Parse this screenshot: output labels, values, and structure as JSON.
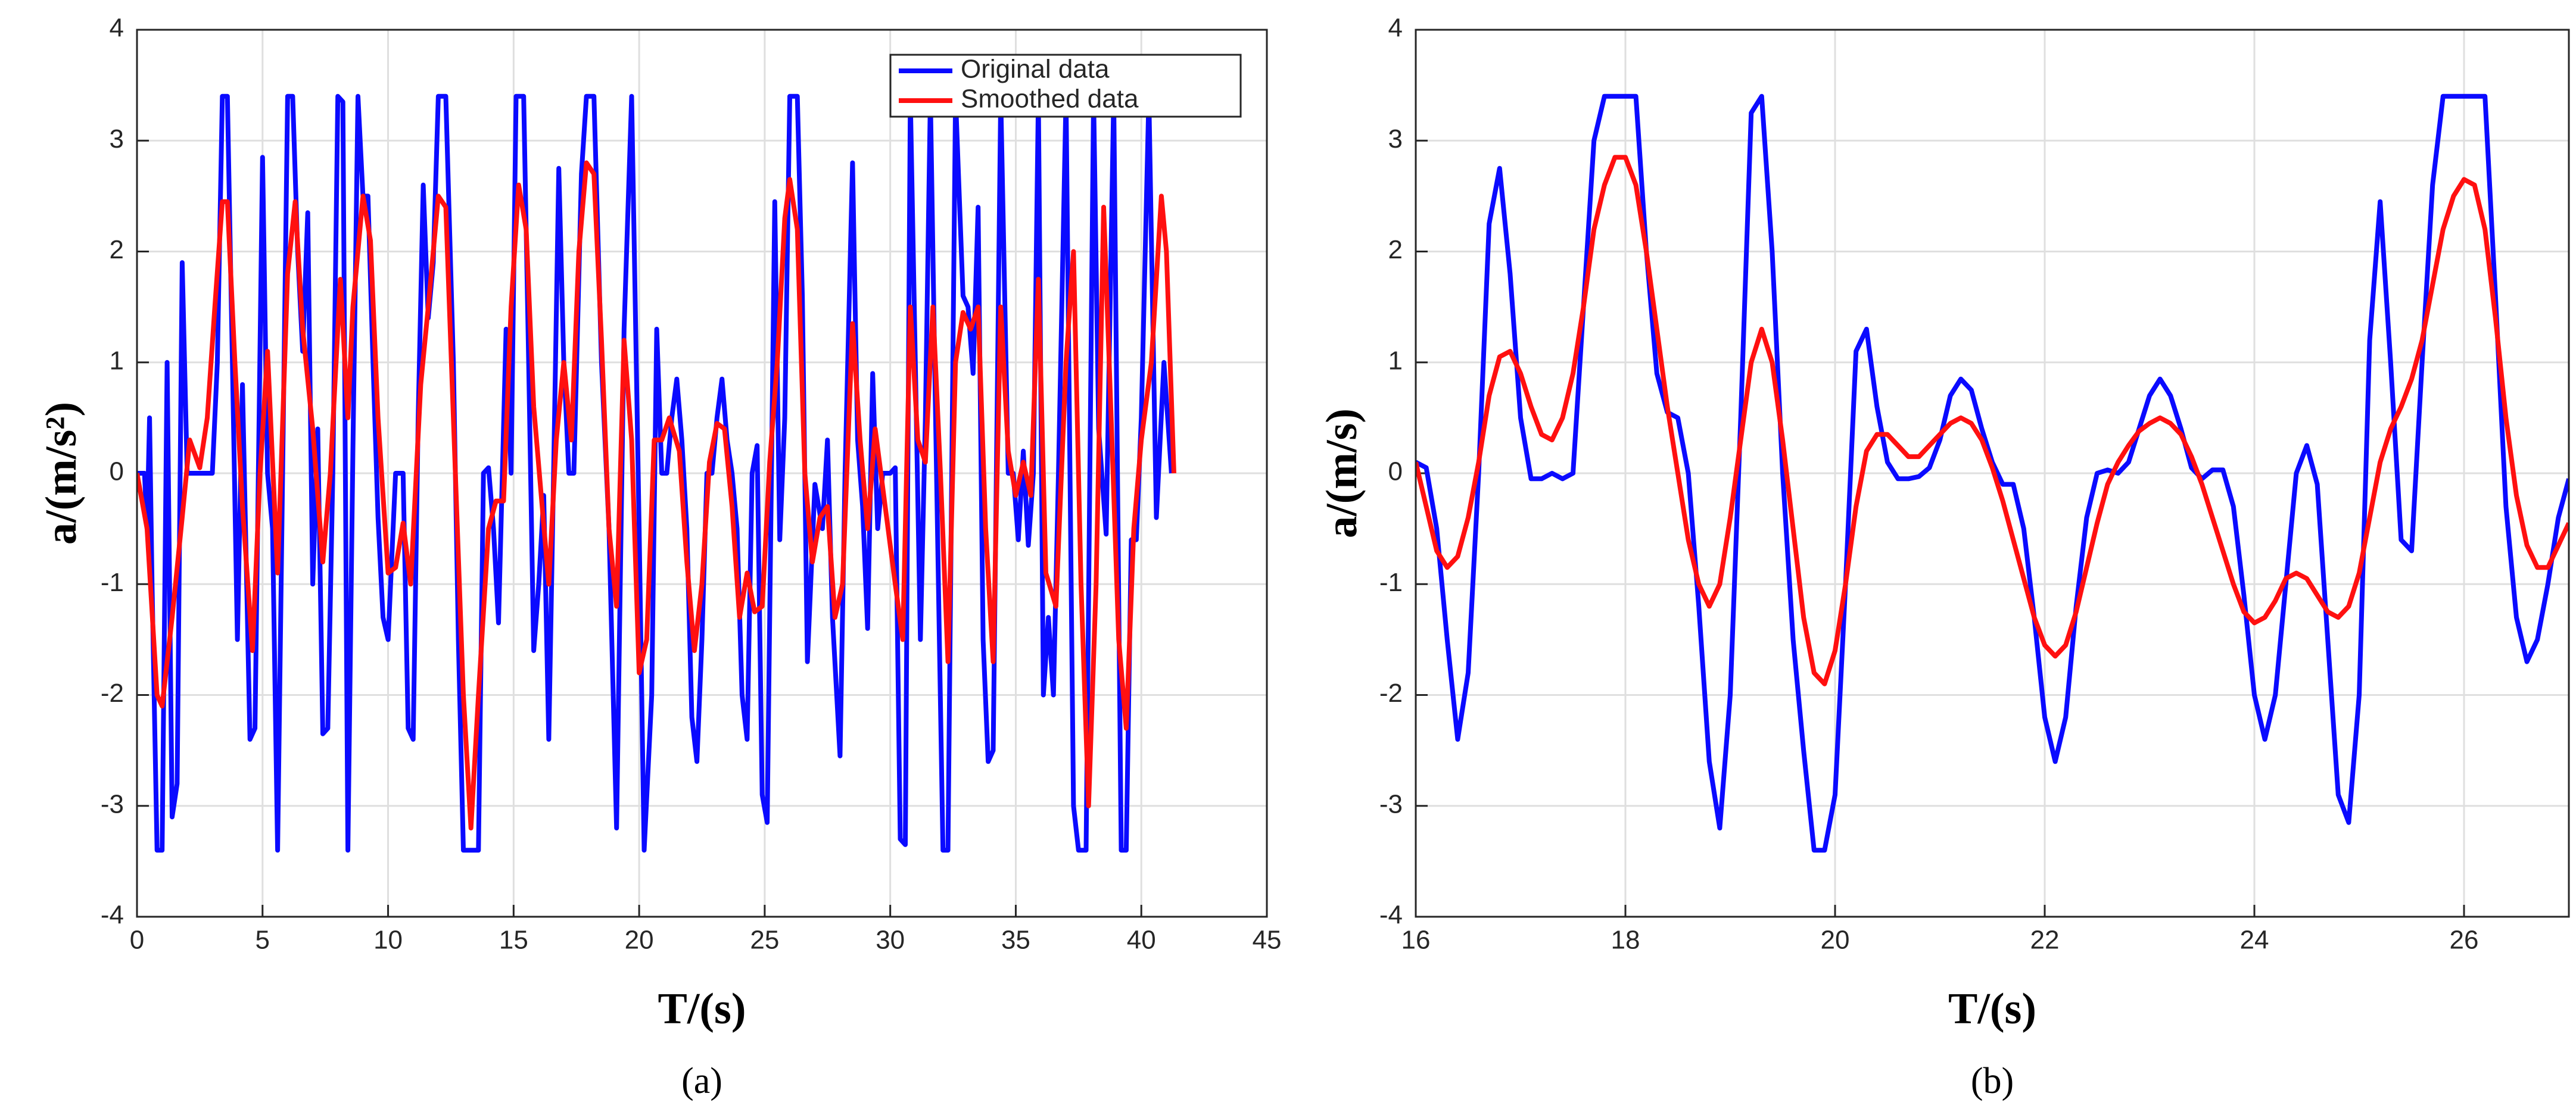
{
  "chart_data": [
    {
      "type": "line",
      "xlabel": "T/(s)",
      "ylabel": "a/(m/s²)",
      "caption": "(a)",
      "xlim": [
        0,
        45
      ],
      "xticks": [
        0,
        5,
        10,
        15,
        20,
        25,
        30,
        35,
        40,
        45
      ],
      "ylim": [
        -4,
        4
      ],
      "yticks": [
        -4,
        -3,
        -2,
        -1,
        0,
        1,
        2,
        3,
        4
      ],
      "grid": true,
      "legend": "upper right",
      "series": [
        {
          "name": "Original data",
          "color": "#0a0aff",
          "x": [
            0,
            0.3,
            0.4,
            0.5,
            0.6,
            0.8,
            1.0,
            1.2,
            1.4,
            1.6,
            1.8,
            2.0,
            2.4,
            2.8,
            3.0,
            3.2,
            3.4,
            3.6,
            3.8,
            4.0,
            4.2,
            4.5,
            4.7,
            5.0,
            5.2,
            5.4,
            5.6,
            5.8,
            6.0,
            6.2,
            6.4,
            6.6,
            6.8,
            7.0,
            7.2,
            7.4,
            7.6,
            7.8,
            8.0,
            8.2,
            8.4,
            8.6,
            8.8,
            9.0,
            9.2,
            9.4,
            9.6,
            9.8,
            10.0,
            10.3,
            10.6,
            10.8,
            11.0,
            11.2,
            11.4,
            11.6,
            11.8,
            12.0,
            12.3,
            12.6,
            12.8,
            13.0,
            13.3,
            13.6,
            13.8,
            14.0,
            14.2,
            14.4,
            14.7,
            14.9,
            15.1,
            15.4,
            15.6,
            15.8,
            16.0,
            16.2,
            16.4,
            16.6,
            16.8,
            17.0,
            17.2,
            17.4,
            17.7,
            17.9,
            18.2,
            18.5,
            18.8,
            19.1,
            19.4,
            19.7,
            20.0,
            20.2,
            20.5,
            20.7,
            20.9,
            21.1,
            21.3,
            21.5,
            21.7,
            21.9,
            22.1,
            22.3,
            22.5,
            22.7,
            22.9,
            23.1,
            23.3,
            23.5,
            23.7,
            23.9,
            24.1,
            24.3,
            24.5,
            24.7,
            24.9,
            25.1,
            25.4,
            25.6,
            25.8,
            26.0,
            26.3,
            26.5,
            26.7,
            27.0,
            27.3,
            27.5,
            27.7,
            28.0,
            28.2,
            28.5,
            28.7,
            28.9,
            29.1,
            29.3,
            29.5,
            29.7,
            30.0,
            30.2,
            30.4,
            30.6,
            30.8,
            31.0,
            31.2,
            31.4,
            31.6,
            31.8,
            32.1,
            32.3,
            32.6,
            32.9,
            33.1,
            33.3,
            33.5,
            33.7,
            33.9,
            34.1,
            34.4,
            34.7,
            34.9,
            35.1,
            35.3,
            35.5,
            35.7,
            35.9,
            36.1,
            36.3,
            36.5,
            36.7,
            37.0,
            37.3,
            37.5,
            37.8,
            38.1,
            38.3,
            38.6,
            38.9,
            39.2,
            39.4,
            39.6,
            39.8,
            40.0,
            40.3,
            40.6,
            40.9,
            41.2
          ],
          "values": [
            0,
            0,
            -0.5,
            0.5,
            -1,
            -3.4,
            -3.4,
            1.0,
            -3.1,
            -2.8,
            1.9,
            0,
            0,
            0,
            0,
            1,
            3.4,
            3.4,
            1,
            -1.5,
            0.8,
            -2.4,
            -2.3,
            2.85,
            0,
            -0.5,
            -3.4,
            0,
            3.4,
            3.4,
            2,
            1.1,
            2.35,
            -1,
            0.4,
            -2.35,
            -2.3,
            0,
            3.4,
            3.35,
            -3.4,
            0.2,
            3.4,
            2.5,
            2.5,
            1.0,
            -0.4,
            -1.3,
            -1.5,
            0,
            0,
            -2.3,
            -2.4,
            0.5,
            2.6,
            1.4,
            1.9,
            3.4,
            3.4,
            1.0,
            -1.5,
            -3.4,
            -3.4,
            -3.4,
            0,
            0.05,
            -0.5,
            -1.35,
            1.3,
            0,
            3.4,
            3.4,
            1.0,
            -1.6,
            -1.0,
            -0.2,
            -2.4,
            0.1,
            2.75,
            1.0,
            0,
            0,
            2.7,
            3.4,
            3.4,
            1,
            -0.5,
            -3.2,
            1.3,
            3.4,
            -0.5,
            -3.4,
            -2.0,
            1.3,
            0,
            0,
            0.5,
            0.85,
            0.3,
            -0.5,
            -2.2,
            -2.6,
            -1.5,
            0,
            0,
            0.5,
            0.85,
            0.3,
            0,
            -0.5,
            -2.0,
            -2.4,
            0,
            0.25,
            -2.9,
            -3.15,
            2.45,
            -0.6,
            0.5,
            3.4,
            3.4,
            1.6,
            -1.7,
            -0.1,
            -0.5,
            0.3,
            -1.3,
            -2.55,
            0,
            2.8,
            0.3,
            -0.3,
            -1.4,
            0.9,
            -0.5,
            0,
            0,
            0.05,
            -3.3,
            -3.35,
            3.4,
            1.0,
            -1.5,
            0.5,
            3.4,
            0.6,
            -3.4,
            -3.4,
            3.4,
            1.6,
            1.5,
            0.9,
            2.4,
            -1.5,
            -2.6,
            -2.5,
            3.4,
            0,
            0,
            -0.6,
            0.2,
            -0.65,
            0,
            3.4,
            -2.0,
            -1.3,
            -2.0,
            0,
            3.4,
            -3.0,
            -3.4,
            -3.4,
            3.4,
            0.4,
            -0.55,
            3.4,
            -3.4,
            -3.4,
            -0.6,
            -0.6,
            0.5,
            3.4,
            -0.4,
            1.0,
            0
          ]
        },
        {
          "name": "Smoothed data",
          "color": "#ff1010",
          "x": [
            0,
            0.4,
            0.8,
            1.0,
            1.4,
            1.8,
            2.1,
            2.5,
            2.8,
            3.1,
            3.4,
            3.6,
            3.9,
            4.2,
            4.6,
            4.9,
            5.2,
            5.6,
            6.0,
            6.3,
            6.6,
            7.0,
            7.4,
            7.7,
            8.1,
            8.4,
            8.6,
            9.0,
            9.3,
            9.6,
            10.0,
            10.3,
            10.6,
            10.9,
            11.3,
            11.6,
            12.0,
            12.3,
            12.6,
            13.0,
            13.3,
            13.6,
            14.0,
            14.3,
            14.6,
            14.9,
            15.2,
            15.5,
            15.8,
            16.1,
            16.4,
            16.7,
            17.0,
            17.3,
            17.6,
            17.9,
            18.2,
            18.5,
            18.8,
            19.1,
            19.4,
            19.7,
            20.0,
            20.3,
            20.6,
            20.9,
            21.2,
            21.6,
            21.9,
            22.2,
            22.5,
            22.8,
            23.1,
            23.4,
            23.7,
            24.0,
            24.3,
            24.6,
            24.9,
            25.2,
            25.5,
            25.8,
            26.0,
            26.3,
            26.6,
            26.9,
            27.2,
            27.5,
            27.8,
            28.1,
            28.5,
            28.8,
            29.1,
            29.4,
            29.8,
            30.2,
            30.5,
            30.8,
            31.1,
            31.4,
            31.7,
            32.0,
            32.3,
            32.6,
            32.9,
            33.2,
            33.5,
            33.8,
            34.1,
            34.4,
            34.7,
            35.0,
            35.3,
            35.6,
            35.9,
            36.2,
            36.6,
            37.0,
            37.3,
            37.6,
            37.9,
            38.2,
            38.5,
            38.8,
            39.1,
            39.4,
            39.7,
            40.0,
            40.4,
            40.8,
            41.0,
            41.3
          ],
          "values": [
            0,
            -0.5,
            -2.0,
            -2.1,
            -1.3,
            -0.4,
            0.3,
            0.05,
            0.5,
            1.5,
            2.45,
            2.45,
            1,
            -0.3,
            -1.6,
            0,
            1.1,
            -0.9,
            1.8,
            2.45,
            1.3,
            0.4,
            -0.8,
            0,
            1.75,
            0.5,
            1.5,
            2.5,
            2.1,
            0.5,
            -0.9,
            -0.85,
            -0.45,
            -1.0,
            0.8,
            1.5,
            2.5,
            2.4,
            0.5,
            -2.0,
            -3.2,
            -2.0,
            -0.5,
            -0.25,
            -0.25,
            1.5,
            2.6,
            2.2,
            0.6,
            -0.2,
            -1.0,
            0.3,
            1.0,
            0.3,
            2.0,
            2.8,
            2.7,
            1.2,
            -0.5,
            -1.2,
            1.2,
            0.3,
            -1.8,
            -1.5,
            0.3,
            0.3,
            0.5,
            0.2,
            -0.8,
            -1.6,
            -1.0,
            0.1,
            0.45,
            0.4,
            -0.3,
            -1.3,
            -0.9,
            -1.25,
            -1.2,
            0.1,
            1.0,
            2.3,
            2.65,
            2.2,
            0,
            -0.8,
            -0.4,
            -0.3,
            -1.3,
            -1.0,
            1.35,
            0.3,
            -0.5,
            0.4,
            -0.3,
            -1.0,
            -1.5,
            1.5,
            0.3,
            0.1,
            1.5,
            0,
            -1.7,
            1.0,
            1.45,
            1.3,
            1.5,
            -0.5,
            -1.7,
            1.5,
            0.2,
            -0.2,
            0.1,
            -0.2,
            1.75,
            -0.9,
            -1.2,
            1.0,
            2.0,
            -1.0,
            -3.0,
            -1.0,
            2.4,
            0.5,
            -1.5,
            -2.3,
            -0.5,
            0.3,
            1.0,
            2.5,
            2.0,
            0
          ]
        }
      ]
    },
    {
      "type": "line",
      "xlabel": "T/(s)",
      "ylabel": "a/(m/s)",
      "caption": "(b)",
      "xlim": [
        16,
        27
      ],
      "xticks": [
        16,
        18,
        20,
        22,
        24,
        26
      ],
      "ylim": [
        -4,
        4
      ],
      "yticks": [
        -4,
        -3,
        -2,
        -1,
        0,
        1,
        2,
        3,
        4
      ],
      "grid": true,
      "x": [
        16,
        16.1,
        16.2,
        16.3,
        16.4,
        16.5,
        16.6,
        16.7,
        16.8,
        16.9,
        17,
        17.1,
        17.2,
        17.3,
        17.4,
        17.5,
        17.6,
        17.7,
        17.8,
        17.9,
        18,
        18.1,
        18.2,
        18.3,
        18.4,
        18.5,
        18.6,
        18.7,
        18.8,
        18.9,
        19,
        19.1,
        19.2,
        19.3,
        19.4,
        19.5,
        19.6,
        19.7,
        19.8,
        19.9,
        20,
        20.1,
        20.2,
        20.3,
        20.4,
        20.5,
        20.6,
        20.7,
        20.8,
        20.9,
        21,
        21.1,
        21.2,
        21.3,
        21.4,
        21.5,
        21.6,
        21.7,
        21.8,
        21.9,
        22,
        22.1,
        22.2,
        22.3,
        22.4,
        22.5,
        22.6,
        22.7,
        22.8,
        22.9,
        23,
        23.1,
        23.2,
        23.3,
        23.4,
        23.5,
        23.6,
        23.7,
        23.8,
        23.9,
        24,
        24.1,
        24.2,
        24.3,
        24.4,
        24.5,
        24.6,
        24.7,
        24.8,
        24.9,
        25,
        25.1,
        25.2,
        25.3,
        25.4,
        25.5,
        25.6,
        25.7,
        25.8,
        25.9,
        26,
        26.1,
        26.2,
        26.3,
        26.4,
        26.5,
        26.6,
        26.7,
        26.8,
        26.9,
        27
      ],
      "series": [
        {
          "name": "Original data",
          "color": "#0a0aff",
          "values": [
            0.1,
            0.05,
            -0.5,
            -1.5,
            -2.4,
            -1.8,
            0,
            2.25,
            2.75,
            1.8,
            0.5,
            -0.05,
            -0.05,
            0,
            -0.05,
            0,
            1.5,
            3.0,
            3.4,
            3.4,
            3.4,
            3.4,
            2.0,
            0.9,
            0.55,
            0.5,
            0,
            -1.2,
            -2.6,
            -3.2,
            -2.0,
            0.5,
            3.25,
            3.4,
            2.0,
            0,
            -1.5,
            -2.5,
            -3.4,
            -3.4,
            -2.9,
            -1.0,
            1.1,
            1.3,
            0.6,
            0.1,
            -0.05,
            -0.05,
            -0.03,
            0.05,
            0.3,
            0.7,
            0.85,
            0.75,
            0.4,
            0.1,
            -0.1,
            -0.1,
            -0.5,
            -1.3,
            -2.2,
            -2.6,
            -2.2,
            -1.2,
            -0.4,
            0,
            0.03,
            0,
            0.1,
            0.4,
            0.7,
            0.85,
            0.7,
            0.4,
            0.05,
            -0.05,
            0.03,
            0.03,
            -0.3,
            -1.1,
            -2.0,
            -2.4,
            -2.0,
            -1.0,
            0,
            0.25,
            -0.1,
            -1.5,
            -2.9,
            -3.15,
            -2.0,
            1.2,
            2.45,
            1.0,
            -0.6,
            -0.7,
            1.0,
            2.6,
            3.4,
            3.4,
            3.4,
            3.4,
            3.4,
            1.6,
            -0.3,
            -1.3,
            -1.7,
            -1.5,
            -1.0,
            -0.4,
            -0.05
          ]
        },
        {
          "name": "Smoothed data",
          "color": "#ff1010",
          "values": [
            0.1,
            -0.3,
            -0.7,
            -0.85,
            -0.75,
            -0.4,
            0.1,
            0.7,
            1.05,
            1.1,
            0.9,
            0.6,
            0.35,
            0.3,
            0.5,
            0.9,
            1.5,
            2.2,
            2.6,
            2.85,
            2.85,
            2.6,
            2.0,
            1.3,
            0.6,
            0,
            -0.6,
            -1.0,
            -1.2,
            -1.0,
            -0.4,
            0.3,
            1.0,
            1.3,
            1.0,
            0.3,
            -0.5,
            -1.3,
            -1.8,
            -1.9,
            -1.6,
            -1.0,
            -0.3,
            0.2,
            0.35,
            0.35,
            0.25,
            0.15,
            0.15,
            0.25,
            0.35,
            0.45,
            0.5,
            0.45,
            0.3,
            0.05,
            -0.25,
            -0.6,
            -0.95,
            -1.3,
            -1.55,
            -1.65,
            -1.55,
            -1.25,
            -0.85,
            -0.45,
            -0.1,
            0.1,
            0.25,
            0.38,
            0.45,
            0.5,
            0.45,
            0.35,
            0.15,
            -0.1,
            -0.4,
            -0.7,
            -1.0,
            -1.25,
            -1.35,
            -1.3,
            -1.15,
            -0.95,
            -0.9,
            -0.95,
            -1.1,
            -1.25,
            -1.3,
            -1.2,
            -0.9,
            -0.4,
            0.1,
            0.4,
            0.6,
            0.85,
            1.2,
            1.7,
            2.2,
            2.5,
            2.65,
            2.6,
            2.2,
            1.4,
            0.5,
            -0.2,
            -0.65,
            -0.85,
            -0.85,
            -0.65,
            -0.45
          ]
        }
      ]
    }
  ]
}
